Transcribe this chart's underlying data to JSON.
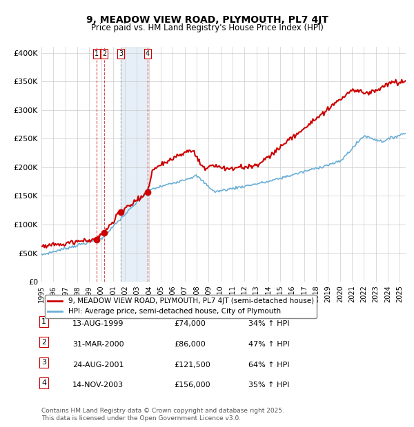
{
  "title": "9, MEADOW VIEW ROAD, PLYMOUTH, PL7 4JT",
  "subtitle": "Price paid vs. HM Land Registry's House Price Index (HPI)",
  "legend_line1": "9, MEADOW VIEW ROAD, PLYMOUTH, PL7 4JT (semi-detached house)",
  "legend_line2": "HPI: Average price, semi-detached house, City of Plymouth",
  "footer": "Contains HM Land Registry data © Crown copyright and database right 2025.\nThis data is licensed under the Open Government Licence v3.0.",
  "ylim": [
    0,
    410000
  ],
  "yticks": [
    0,
    50000,
    100000,
    150000,
    200000,
    250000,
    300000,
    350000,
    400000
  ],
  "ytick_labels": [
    "£0",
    "£50K",
    "£100K",
    "£150K",
    "£200K",
    "£250K",
    "£300K",
    "£350K",
    "£400K"
  ],
  "sales": [
    {
      "num": 1,
      "date_label": "13-AUG-1999",
      "price_label": "£74,000",
      "pct_label": "34% ↑ HPI",
      "year": 1999.62,
      "price": 74000
    },
    {
      "num": 2,
      "date_label": "31-MAR-2000",
      "price_label": "£86,000",
      "pct_label": "47% ↑ HPI",
      "year": 2000.25,
      "price": 86000
    },
    {
      "num": 3,
      "date_label": "24-AUG-2001",
      "price_label": "£121,500",
      "pct_label": "64% ↑ HPI",
      "year": 2001.65,
      "price": 121500
    },
    {
      "num": 4,
      "date_label": "14-NOV-2003",
      "price_label": "£156,000",
      "pct_label": "35% ↑ HPI",
      "year": 2003.87,
      "price": 156000
    }
  ],
  "hpi_color": "#6baed6",
  "price_color": "#cc0000",
  "sale_dot_color": "#cc0000",
  "shade_color": "#dce9f5",
  "vline_color_12": "#cc0000",
  "vline_color_3": "#888888",
  "vline_color_4": "#cc0000",
  "background_color": "#ffffff",
  "grid_color": "#cccccc"
}
